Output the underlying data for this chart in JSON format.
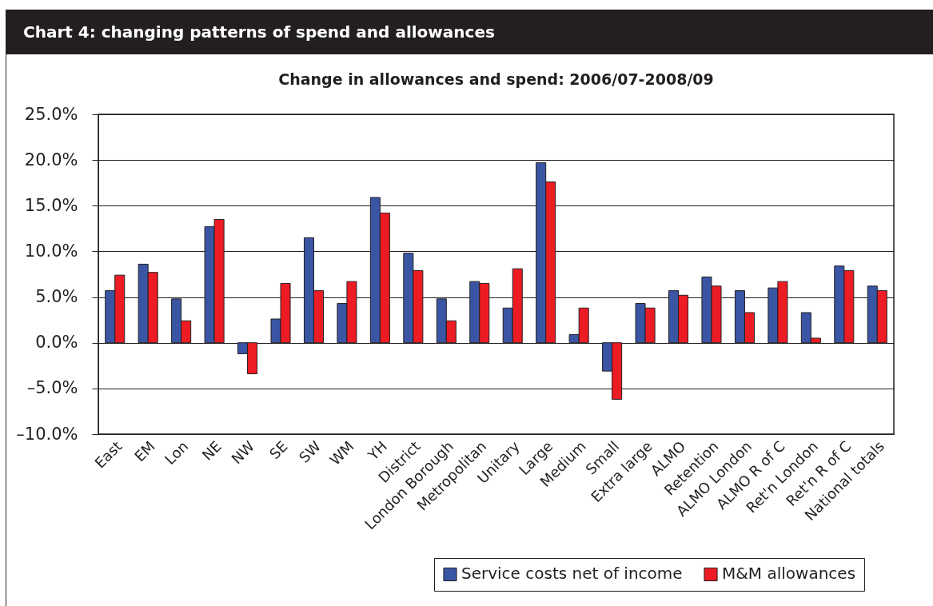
{
  "chart_data": {
    "type": "bar",
    "title": "Chart 4: changing patterns of spend and allowances",
    "subtitle": "Change in allowances and spend: 2006/07-2008/09",
    "categories": [
      "East",
      "EM",
      "Lon",
      "NE",
      "NW",
      "SE",
      "SW",
      "WM",
      "YH",
      "District",
      "London Borough",
      "Metropolitan",
      "Unitary",
      "Large",
      "Medium",
      "Small",
      "Extra large",
      "ALMO",
      "Retention",
      "ALMO London",
      "ALMO R of C",
      "Ret'n London",
      "Ret'n R of C",
      "National totals"
    ],
    "series": [
      {
        "name": "Service costs net of income",
        "color": "#3a55a4",
        "values": [
          5.7,
          8.6,
          4.8,
          12.7,
          -1.2,
          2.6,
          11.5,
          4.3,
          15.9,
          9.8,
          4.8,
          6.7,
          3.8,
          19.7,
          0.9,
          -3.1,
          4.3,
          5.7,
          7.2,
          5.7,
          6.0,
          3.3,
          8.4,
          6.2
        ]
      },
      {
        "name": "M&M allowances",
        "color": "#ed1c24",
        "values": [
          7.4,
          7.7,
          2.4,
          13.5,
          -3.4,
          6.5,
          5.7,
          6.7,
          14.2,
          7.9,
          2.4,
          6.5,
          8.1,
          17.6,
          3.8,
          -6.2,
          3.8,
          5.2,
          6.2,
          3.3,
          6.7,
          0.5,
          7.9,
          5.7
        ]
      }
    ],
    "ylim": [
      -10,
      25
    ],
    "yticks": [
      {
        "value": -10,
        "label": "–10.0%"
      },
      {
        "value": -5,
        "label": "–5.0%"
      },
      {
        "value": 0,
        "label": "0.0%"
      },
      {
        "value": 5,
        "label": "5.0%"
      },
      {
        "value": 10,
        "label": "10.0%"
      },
      {
        "value": 15,
        "label": "15.0%"
      },
      {
        "value": 20,
        "label": "20.0%"
      },
      {
        "value": 25,
        "label": "25.0%"
      }
    ],
    "grid": "y",
    "legend": "bottom right"
  }
}
